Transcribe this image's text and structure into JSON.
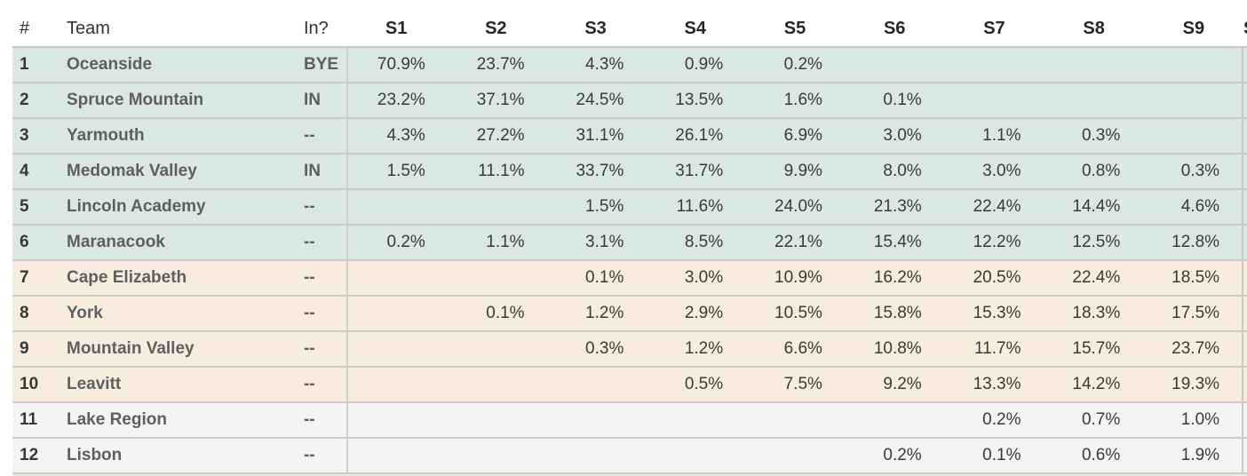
{
  "chart_data": {
    "type": "table",
    "columns": [
      "#",
      "Team",
      "In?",
      "S1",
      "S2",
      "S3",
      "S4",
      "S5",
      "S6",
      "S7",
      "S8",
      "S9"
    ],
    "clipped_next_column_header": "S",
    "rows": [
      {
        "rank": "1",
        "team": "Oceanside",
        "in": "BYE",
        "tint": "green",
        "seeds": [
          "70.9%",
          "23.7%",
          "4.3%",
          "0.9%",
          "0.2%",
          "",
          "",
          "",
          ""
        ]
      },
      {
        "rank": "2",
        "team": "Spruce Mountain",
        "in": "IN",
        "tint": "green",
        "seeds": [
          "23.2%",
          "37.1%",
          "24.5%",
          "13.5%",
          "1.6%",
          "0.1%",
          "",
          "",
          ""
        ]
      },
      {
        "rank": "3",
        "team": "Yarmouth",
        "in": "--",
        "tint": "green",
        "seeds": [
          "4.3%",
          "27.2%",
          "31.1%",
          "26.1%",
          "6.9%",
          "3.0%",
          "1.1%",
          "0.3%",
          ""
        ]
      },
      {
        "rank": "4",
        "team": "Medomak Valley",
        "in": "IN",
        "tint": "green",
        "seeds": [
          "1.5%",
          "11.1%",
          "33.7%",
          "31.7%",
          "9.9%",
          "8.0%",
          "3.0%",
          "0.8%",
          "0.3%"
        ]
      },
      {
        "rank": "5",
        "team": "Lincoln Academy",
        "in": "--",
        "tint": "green",
        "seeds": [
          "",
          "",
          "1.5%",
          "11.6%",
          "24.0%",
          "21.3%",
          "22.4%",
          "14.4%",
          "4.6%"
        ]
      },
      {
        "rank": "6",
        "team": "Maranacook",
        "in": "--",
        "tint": "green",
        "seeds": [
          "0.2%",
          "1.1%",
          "3.1%",
          "8.5%",
          "22.1%",
          "15.4%",
          "12.2%",
          "12.5%",
          "12.8%"
        ]
      },
      {
        "rank": "7",
        "team": "Cape Elizabeth",
        "in": "--",
        "tint": "tan",
        "seeds": [
          "",
          "",
          "0.1%",
          "3.0%",
          "10.9%",
          "16.2%",
          "20.5%",
          "22.4%",
          "18.5%"
        ]
      },
      {
        "rank": "8",
        "team": "York",
        "in": "--",
        "tint": "tan",
        "seeds": [
          "",
          "0.1%",
          "1.2%",
          "2.9%",
          "10.5%",
          "15.8%",
          "15.3%",
          "18.3%",
          "17.5%"
        ]
      },
      {
        "rank": "9",
        "team": "Mountain Valley",
        "in": "--",
        "tint": "tan",
        "seeds": [
          "",
          "",
          "0.3%",
          "1.2%",
          "6.6%",
          "10.8%",
          "11.7%",
          "15.7%",
          "23.7%"
        ]
      },
      {
        "rank": "10",
        "team": "Leavitt",
        "in": "--",
        "tint": "tan",
        "seeds": [
          "",
          "",
          "",
          "0.5%",
          "7.5%",
          "9.2%",
          "13.3%",
          "14.2%",
          "19.3%"
        ]
      },
      {
        "rank": "11",
        "team": "Lake Region",
        "in": "--",
        "tint": "gray",
        "seeds": [
          "",
          "",
          "",
          "",
          "",
          "",
          "0.2%",
          "0.7%",
          "1.0%"
        ]
      },
      {
        "rank": "12",
        "team": "Lisbon",
        "in": "--",
        "tint": "gray",
        "seeds": [
          "",
          "",
          "",
          "",
          "",
          "0.2%",
          "0.1%",
          "0.6%",
          "1.9%"
        ]
      }
    ]
  },
  "colors": {
    "row_green": "#dae8e2",
    "row_tan": "#f7ecdd",
    "row_gray": "#f4f4f4",
    "separator": "#cbcbcb",
    "header_text": "#262626"
  }
}
